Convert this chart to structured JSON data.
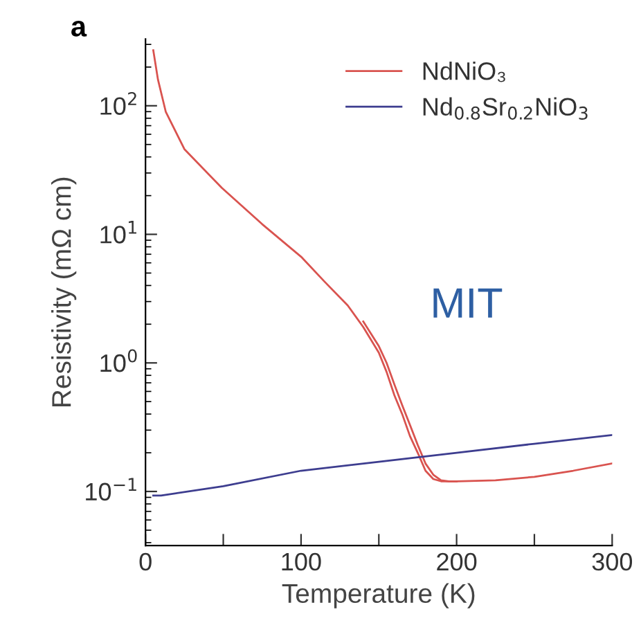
{
  "chart_data": {
    "type": "line",
    "title": "a",
    "xlabel": "Temperature (K)",
    "ylabel": "Resistivity (mΩ cm)",
    "log": "y",
    "xlim": [
      0,
      300
    ],
    "ylim": [
      0.038,
      330
    ],
    "xticks": [
      0,
      {
        "value": 50,
        "label": null
      },
      100,
      {
        "value": 150,
        "label": null
      },
      200,
      {
        "value": 250,
        "label": null
      },
      300
    ],
    "yticks": [
      {
        "value": 0.1,
        "label": "10$^{−1}$"
      },
      {
        "value": 1,
        "label": "10$^{0}$"
      },
      {
        "value": 10,
        "label": "10$^{1}$"
      },
      {
        "value": 100,
        "label": "10$^{2}$"
      }
    ],
    "legend": "top right",
    "grid": false,
    "line_style": "solid",
    "marker": "none",
    "annotations": [
      "MIT"
    ],
    "series": [
      {
        "name": "NdNiO₃",
        "color": "#d9534f",
        "x": [
          5,
          8,
          13,
          25,
          49,
          75,
          100,
          115,
          130,
          140,
          150,
          155,
          160,
          165,
          170,
          175,
          180,
          185,
          190,
          200,
          225,
          250,
          275,
          300
        ],
        "values": [
          270,
          160,
          90,
          46,
          23,
          12,
          6.7,
          4.3,
          2.8,
          1.9,
          1.2,
          0.85,
          0.56,
          0.4,
          0.27,
          0.2,
          0.145,
          0.125,
          0.12,
          0.12,
          0.122,
          0.13,
          0.145,
          0.165
        ]
      },
      {
        "color": "#d9534f",
        "x": [
          140,
          150,
          155,
          160,
          165,
          170,
          175,
          180,
          185,
          190,
          195,
          200
        ],
        "values": [
          2.1,
          1.35,
          1.0,
          0.68,
          0.47,
          0.33,
          0.23,
          0.165,
          0.135,
          0.122,
          0.12,
          0.12
        ]
      },
      {
        "name": "Nd$_{0.8}$Sr$_{0.2}$NiO$_{3}$",
        "color": "#3d3d8f",
        "x": [
          5,
          10,
          50,
          100,
          150,
          200,
          250,
          300
        ],
        "values": [
          0.093,
          0.093,
          0.11,
          0.145,
          0.17,
          0.2,
          0.235,
          0.275
        ]
      }
    ]
  }
}
